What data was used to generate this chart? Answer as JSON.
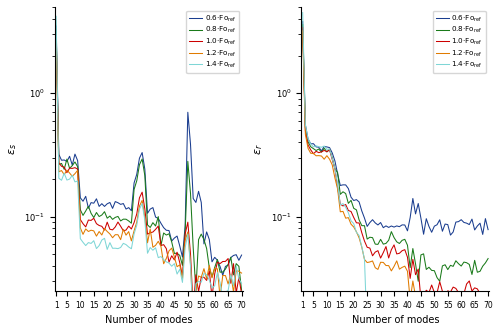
{
  "colors": {
    "0.6": "#1a3d8f",
    "0.8": "#1a7a1a",
    "1.0": "#cc0000",
    "1.2": "#e07b00",
    "1.4": "#7fd6d6"
  },
  "legend_labels": [
    "0.6·Fo$_\\mathrm{ref}$",
    "0.8·Fo$_\\mathrm{ref}$",
    "1.0·Fo$_\\mathrm{ref}$",
    "1.2·Fo$_\\mathrm{ref}$",
    "1.4·Fo$_\\mathrm{ref}$"
  ],
  "ylabel_left": "$\\varepsilon_s$",
  "ylabel_right": "$\\varepsilon_r$",
  "xlabel": "Number of modes",
  "xticks": [
    1,
    5,
    10,
    15,
    20,
    25,
    30,
    35,
    40,
    45,
    50,
    55,
    60,
    65,
    70
  ],
  "ylim_left": [
    0.025,
    5.0
  ],
  "ylim_right": [
    0.025,
    5.0
  ],
  "figsize": [
    5.0,
    3.32
  ],
  "dpi": 100
}
